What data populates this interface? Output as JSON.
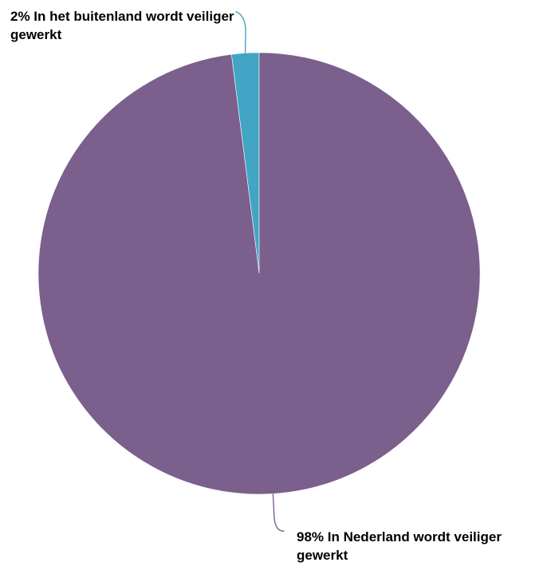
{
  "chart_data": {
    "type": "pie",
    "title": "",
    "start_angle_deg": 0,
    "direction": "counterclockwise",
    "slices": [
      {
        "label": "In het buitenland wordt veiliger gewerkt",
        "value": 2,
        "display": "2% In het buitenland wordt veiliger gewerkt",
        "color": "#42A5C6"
      },
      {
        "label": "In Nederland wordt veiliger gewerkt",
        "value": 98,
        "display": "98% In Nederland wordt veiliger gewerkt",
        "color": "#7B5F8D"
      }
    ],
    "legend": "none"
  }
}
